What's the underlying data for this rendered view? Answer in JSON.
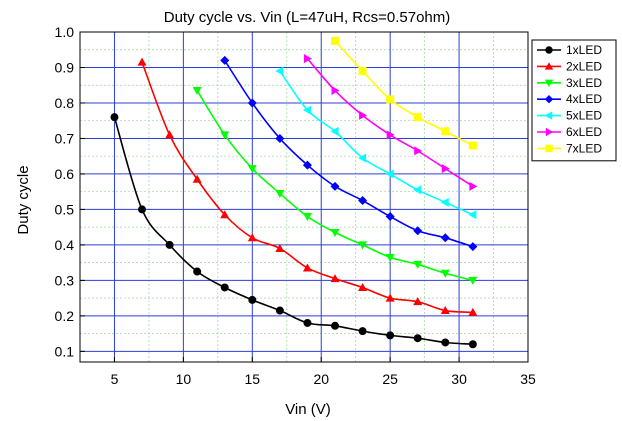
{
  "chart_data": {
    "type": "line",
    "title": "Duty cycle vs. Vin  (L=47uH, Rcs=0.57ohm)",
    "xlabel": "Vin (V)",
    "ylabel": "Duty cycle",
    "xlim": [
      2.5,
      35
    ],
    "ylim": [
      0.07,
      1.0
    ],
    "xticks": [
      5,
      10,
      15,
      20,
      25,
      30,
      35
    ],
    "yticks": [
      0.1,
      0.2,
      0.3,
      0.4,
      0.5,
      0.6,
      0.7,
      0.8,
      0.9,
      1.0
    ],
    "grid": true,
    "legend_position": "right",
    "series": [
      {
        "name": "1xLED",
        "color": "#000000",
        "marker": "circle",
        "x": [
          5,
          7,
          9,
          11,
          13,
          15,
          17,
          19,
          21,
          23,
          25,
          27,
          29,
          31
        ],
        "y": [
          0.76,
          0.5,
          0.4,
          0.325,
          0.28,
          0.245,
          0.215,
          0.18,
          0.172,
          0.157,
          0.145,
          0.137,
          0.125,
          0.12
        ]
      },
      {
        "name": "2xLED",
        "color": "#ff0000",
        "marker": "triangle-up",
        "x": [
          7,
          9,
          11,
          13,
          15,
          17,
          19,
          21,
          23,
          25,
          27,
          29,
          31
        ],
        "y": [
          0.915,
          0.71,
          0.585,
          0.485,
          0.42,
          0.39,
          0.335,
          0.305,
          0.28,
          0.25,
          0.24,
          0.215,
          0.21
        ]
      },
      {
        "name": "3xLED",
        "color": "#00ff00",
        "marker": "triangle-down",
        "x": [
          11,
          13,
          15,
          17,
          19,
          21,
          23,
          25,
          27,
          29,
          31
        ],
        "y": [
          0.835,
          0.71,
          0.615,
          0.545,
          0.48,
          0.435,
          0.4,
          0.365,
          0.345,
          0.32,
          0.3
        ]
      },
      {
        "name": "4xLED",
        "color": "#0000ff",
        "marker": "diamond",
        "x": [
          13,
          15,
          17,
          19,
          21,
          23,
          25,
          27,
          29,
          31
        ],
        "y": [
          0.92,
          0.8,
          0.7,
          0.625,
          0.565,
          0.525,
          0.48,
          0.44,
          0.42,
          0.395
        ]
      },
      {
        "name": "5xLED",
        "color": "#00ffff",
        "marker": "triangle-left",
        "x": [
          17,
          19,
          21,
          23,
          25,
          27,
          29,
          31
        ],
        "y": [
          0.89,
          0.78,
          0.72,
          0.645,
          0.6,
          0.555,
          0.52,
          0.485
        ]
      },
      {
        "name": "6xLED",
        "color": "#ff00ff",
        "marker": "triangle-right",
        "x": [
          19,
          21,
          23,
          25,
          27,
          29,
          31
        ],
        "y": [
          0.925,
          0.835,
          0.765,
          0.71,
          0.665,
          0.615,
          0.565
        ]
      },
      {
        "name": "7xLED",
        "color": "#ffff00",
        "marker": "square",
        "x": [
          21,
          23,
          25,
          27,
          29,
          31
        ],
        "y": [
          0.975,
          0.89,
          0.81,
          0.76,
          0.72,
          0.68
        ]
      }
    ]
  }
}
